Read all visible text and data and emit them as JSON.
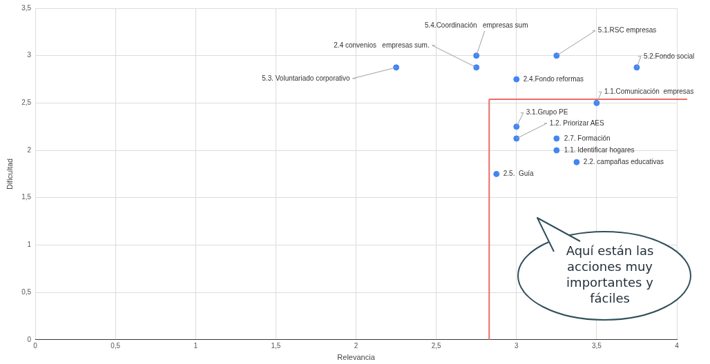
{
  "chart_data": {
    "type": "scatter",
    "xlabel": "Relevancia",
    "ylabel": "Dificultad",
    "xlim": [
      0,
      4
    ],
    "xticks": [
      {
        "value": 0,
        "label": "0"
      },
      {
        "value": 0.5,
        "label": "0,5"
      },
      {
        "value": 1,
        "label": "1"
      },
      {
        "value": 1.5,
        "label": "1,5"
      },
      {
        "value": 2,
        "label": "2"
      },
      {
        "value": 2.5,
        "label": "2,5"
      },
      {
        "value": 3,
        "label": "3"
      },
      {
        "value": 3.5,
        "label": "3,5"
      },
      {
        "value": 4,
        "label": "4"
      }
    ],
    "ylim": [
      0,
      3.5
    ],
    "yticks": [
      {
        "value": 0,
        "label": "0"
      },
      {
        "value": 0.5,
        "label": "0,5"
      },
      {
        "value": 1,
        "label": "1"
      },
      {
        "value": 1.5,
        "label": "1,5"
      },
      {
        "value": 2,
        "label": "2"
      },
      {
        "value": 2.5,
        "label": "2,5"
      },
      {
        "value": 3,
        "label": "3"
      },
      {
        "value": 3.5,
        "label": "3,5"
      }
    ],
    "grid": true,
    "legend": false,
    "marker": "circle",
    "series": [
      {
        "color": "#4285f4",
        "x": [
          2.75,
          2.75,
          3.25,
          3.75,
          2.25,
          3,
          3.5,
          3,
          3,
          3.25,
          3.25,
          3.375,
          2.875
        ],
        "values": [
          3,
          2.875,
          3,
          2.875,
          2.875,
          2.75,
          2.5,
          2.25,
          2.125,
          2.125,
          2,
          1.875,
          1.75
        ]
      }
    ],
    "ref_lines": [
      {
        "axis": "x",
        "value": 2.83,
        "color": "#ea6b66"
      },
      {
        "axis": "y",
        "value": 2.54,
        "color": "#ea6b66"
      }
    ],
    "annotations": [
      {
        "text": "5.4.Coordinación   empresas sum",
        "x": 2.75,
        "y": 3
      },
      {
        "text": "2.4 convenios   empresas sum.",
        "x": 2.75,
        "y": 2.875
      },
      {
        "text": "5.1.RSC empresas",
        "x": 3.25,
        "y": 3
      },
      {
        "text": "5.2.Fondo social",
        "x": 3.75,
        "y": 2.875
      },
      {
        "text": "5.3. Voluntariado corporativo",
        "x": 2.25,
        "y": 2.875
      },
      {
        "text": "2.4.Fondo reformas",
        "x": 3,
        "y": 2.75
      },
      {
        "text": "1.1.Comunicación  empresas",
        "x": 3.5,
        "y": 2.5
      },
      {
        "text": "3.1.Grupo PE",
        "x": 3,
        "y": 2.25
      },
      {
        "text": "1.2. Priorizar AES",
        "x": 3,
        "y": 2.125
      },
      {
        "text": "2.7. Formación",
        "x": 3.25,
        "y": 2.125
      },
      {
        "text": "1.1. Identificar hogares",
        "x": 3.25,
        "y": 2
      },
      {
        "text": "2.2. campañas educativas",
        "x": 3.375,
        "y": 1.875
      },
      {
        "text": "2.5.  Guía",
        "x": 2.875,
        "y": 1.75
      },
      "Aquí están las acciones muy importantes y fáciles"
    ]
  }
}
